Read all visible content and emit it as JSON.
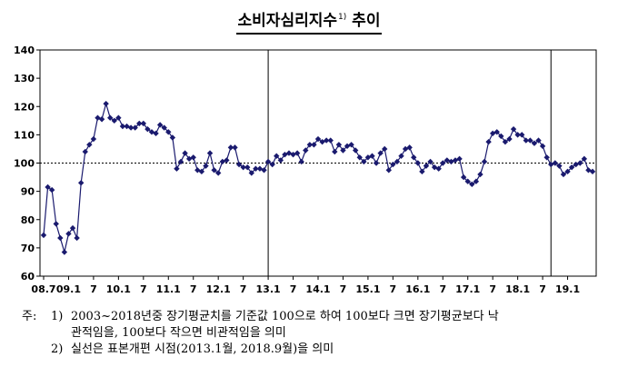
{
  "title": "소비자심리지수",
  "title_note_mark": "1)",
  "notes": {
    "lead": "주:",
    "items": [
      {
        "num": "1)",
        "line1": "2003~2018년중 장기평균치를 기준값 100으로 하여 100보다 크면 장기평균보다 낙",
        "line2": "관적임을, 100보다 작으면 비관적임을 의미"
      },
      {
        "num": "2)",
        "line1": "실선은 표본개편 시점(2013.1월, 2018.9월)을 의미"
      }
    ]
  },
  "chart_data": {
    "type": "line",
    "x_tick_labels": [
      "08.7",
      "09.1",
      "7",
      "10.1",
      "7",
      "11.1",
      "7",
      "12.1",
      "7",
      "13.1",
      "7",
      "14.1",
      "7",
      "15.1",
      "7",
      "16.1",
      "7",
      "17.1",
      "7",
      "18.1",
      "7",
      "19.1"
    ],
    "y_tick_labels": [
      "60",
      "70",
      "80",
      "90",
      "100",
      "110",
      "120",
      "130",
      "140"
    ],
    "ylim": [
      60,
      140
    ],
    "yticks": [
      60,
      70,
      80,
      90,
      100,
      110,
      120,
      130,
      140
    ],
    "reference_line": 100,
    "vertical_lines": [
      "13.1",
      "18.9"
    ],
    "series": [
      {
        "color": "#1a1a6e",
        "values": [
          74.5,
          91.5,
          90.5,
          78.5,
          73.5,
          68.5,
          75.0,
          77.0,
          73.5,
          93.0,
          104.0,
          106.5,
          108.5,
          116.0,
          115.5,
          121.0,
          116.0,
          115.0,
          116.0,
          113.0,
          113.0,
          112.5,
          112.5,
          114.0,
          114.0,
          112.0,
          111.0,
          110.5,
          113.5,
          112.5,
          111.0,
          109.0,
          98.0,
          100.5,
          103.5,
          101.5,
          102.0,
          97.5,
          97.0,
          99.0,
          103.5,
          97.5,
          96.5,
          100.5,
          101.0,
          105.5,
          105.5,
          99.5,
          98.5,
          98.5,
          96.5,
          98.0,
          98.0,
          97.5,
          100.5,
          99.5,
          102.5,
          101.0,
          103.0,
          103.5,
          103.0,
          103.5,
          100.5,
          104.5,
          106.5,
          106.5,
          108.5,
          107.5,
          108.0,
          108.0,
          104.0,
          106.5,
          104.5,
          106.0,
          106.5,
          104.5,
          102.0,
          100.5,
          102.0,
          102.5,
          100.0,
          103.5,
          105.0,
          97.5,
          99.5,
          100.5,
          102.5,
          105.0,
          105.5,
          102.0,
          100.0,
          97.0,
          99.0,
          100.5,
          98.5,
          98.0,
          100.0,
          101.0,
          100.5,
          101.0,
          101.5,
          95.0,
          93.5,
          92.5,
          93.5,
          96.0,
          100.5,
          107.5,
          110.5,
          111.0,
          109.5,
          107.5,
          108.5,
          112.0,
          110.0,
          110.0,
          108.0,
          108.0,
          107.0,
          108.0,
          106.0,
          102.0,
          99.5,
          100.0,
          99.0,
          96.0,
          97.0,
          98.5,
          99.5,
          100.0,
          101.5,
          97.5,
          97.0
        ]
      }
    ],
    "grid": false,
    "legend": "none"
  }
}
